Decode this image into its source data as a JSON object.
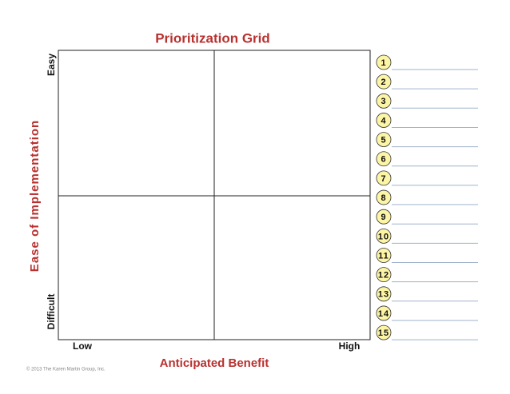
{
  "title": "Prioritization Grid",
  "y_axis": {
    "label": "Ease of Implementation",
    "top": "Easy",
    "bottom": "Difficult"
  },
  "x_axis": {
    "label": "Anticipated Benefit",
    "left": "Low",
    "right": "High"
  },
  "items": [
    1,
    2,
    3,
    4,
    5,
    6,
    7,
    8,
    9,
    10,
    11,
    12,
    13,
    14,
    15
  ],
  "footer": "© 2013 The Karen Martin Group, Inc."
}
